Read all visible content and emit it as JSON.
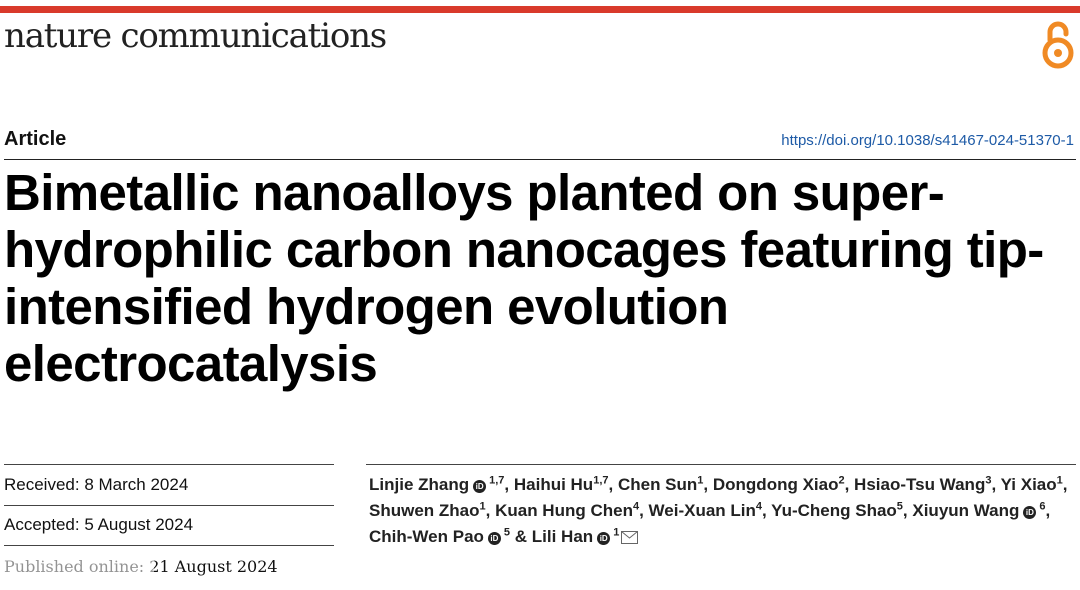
{
  "journal": {
    "name": "nature communications",
    "accent_color": "#d93a2b",
    "oa_icon": "open-access-icon",
    "oa_color": "#f08a24"
  },
  "article": {
    "type": "Article",
    "doi": "https://doi.org/10.1038/s41467-024-51370-1",
    "title": "Bimetallic nanoalloys planted on super-hydrophilic carbon nanocages featuring tip-intensified hydrogen evolution electrocatalysis"
  },
  "dates": {
    "received": "Received: 8 March 2024",
    "accepted": "Accepted: 5 August 2024",
    "published": "Published online: 21 August 2024"
  },
  "authors": [
    {
      "name": "Linjie Zhang",
      "orcid": true,
      "aff": "1,7"
    },
    {
      "name": "Haihui Hu",
      "orcid": false,
      "aff": "1,7"
    },
    {
      "name": "Chen Sun",
      "orcid": false,
      "aff": "1"
    },
    {
      "name": "Dongdong Xiao",
      "orcid": false,
      "aff": "2"
    },
    {
      "name": "Hsiao-Tsu Wang",
      "orcid": false,
      "aff": "3"
    },
    {
      "name": "Yi Xiao",
      "orcid": false,
      "aff": "1"
    },
    {
      "name": "Shuwen Zhao",
      "orcid": false,
      "aff": "1"
    },
    {
      "name": "Kuan Hung Chen",
      "orcid": false,
      "aff": "4"
    },
    {
      "name": "Wei-Xuan Lin",
      "orcid": false,
      "aff": "4"
    },
    {
      "name": "Yu-Cheng Shao",
      "orcid": false,
      "aff": "5"
    },
    {
      "name": "Xiuyun Wang",
      "orcid": true,
      "aff": "6"
    },
    {
      "name": "Chih-Wen Pao",
      "orcid": true,
      "aff": "5"
    },
    {
      "name": "Lili Han",
      "orcid": true,
      "aff": "1",
      "corresponding": true
    }
  ],
  "author_final_joiner": "& ",
  "icons": {
    "orcid_label": "iD",
    "mail": "mail-icon"
  }
}
